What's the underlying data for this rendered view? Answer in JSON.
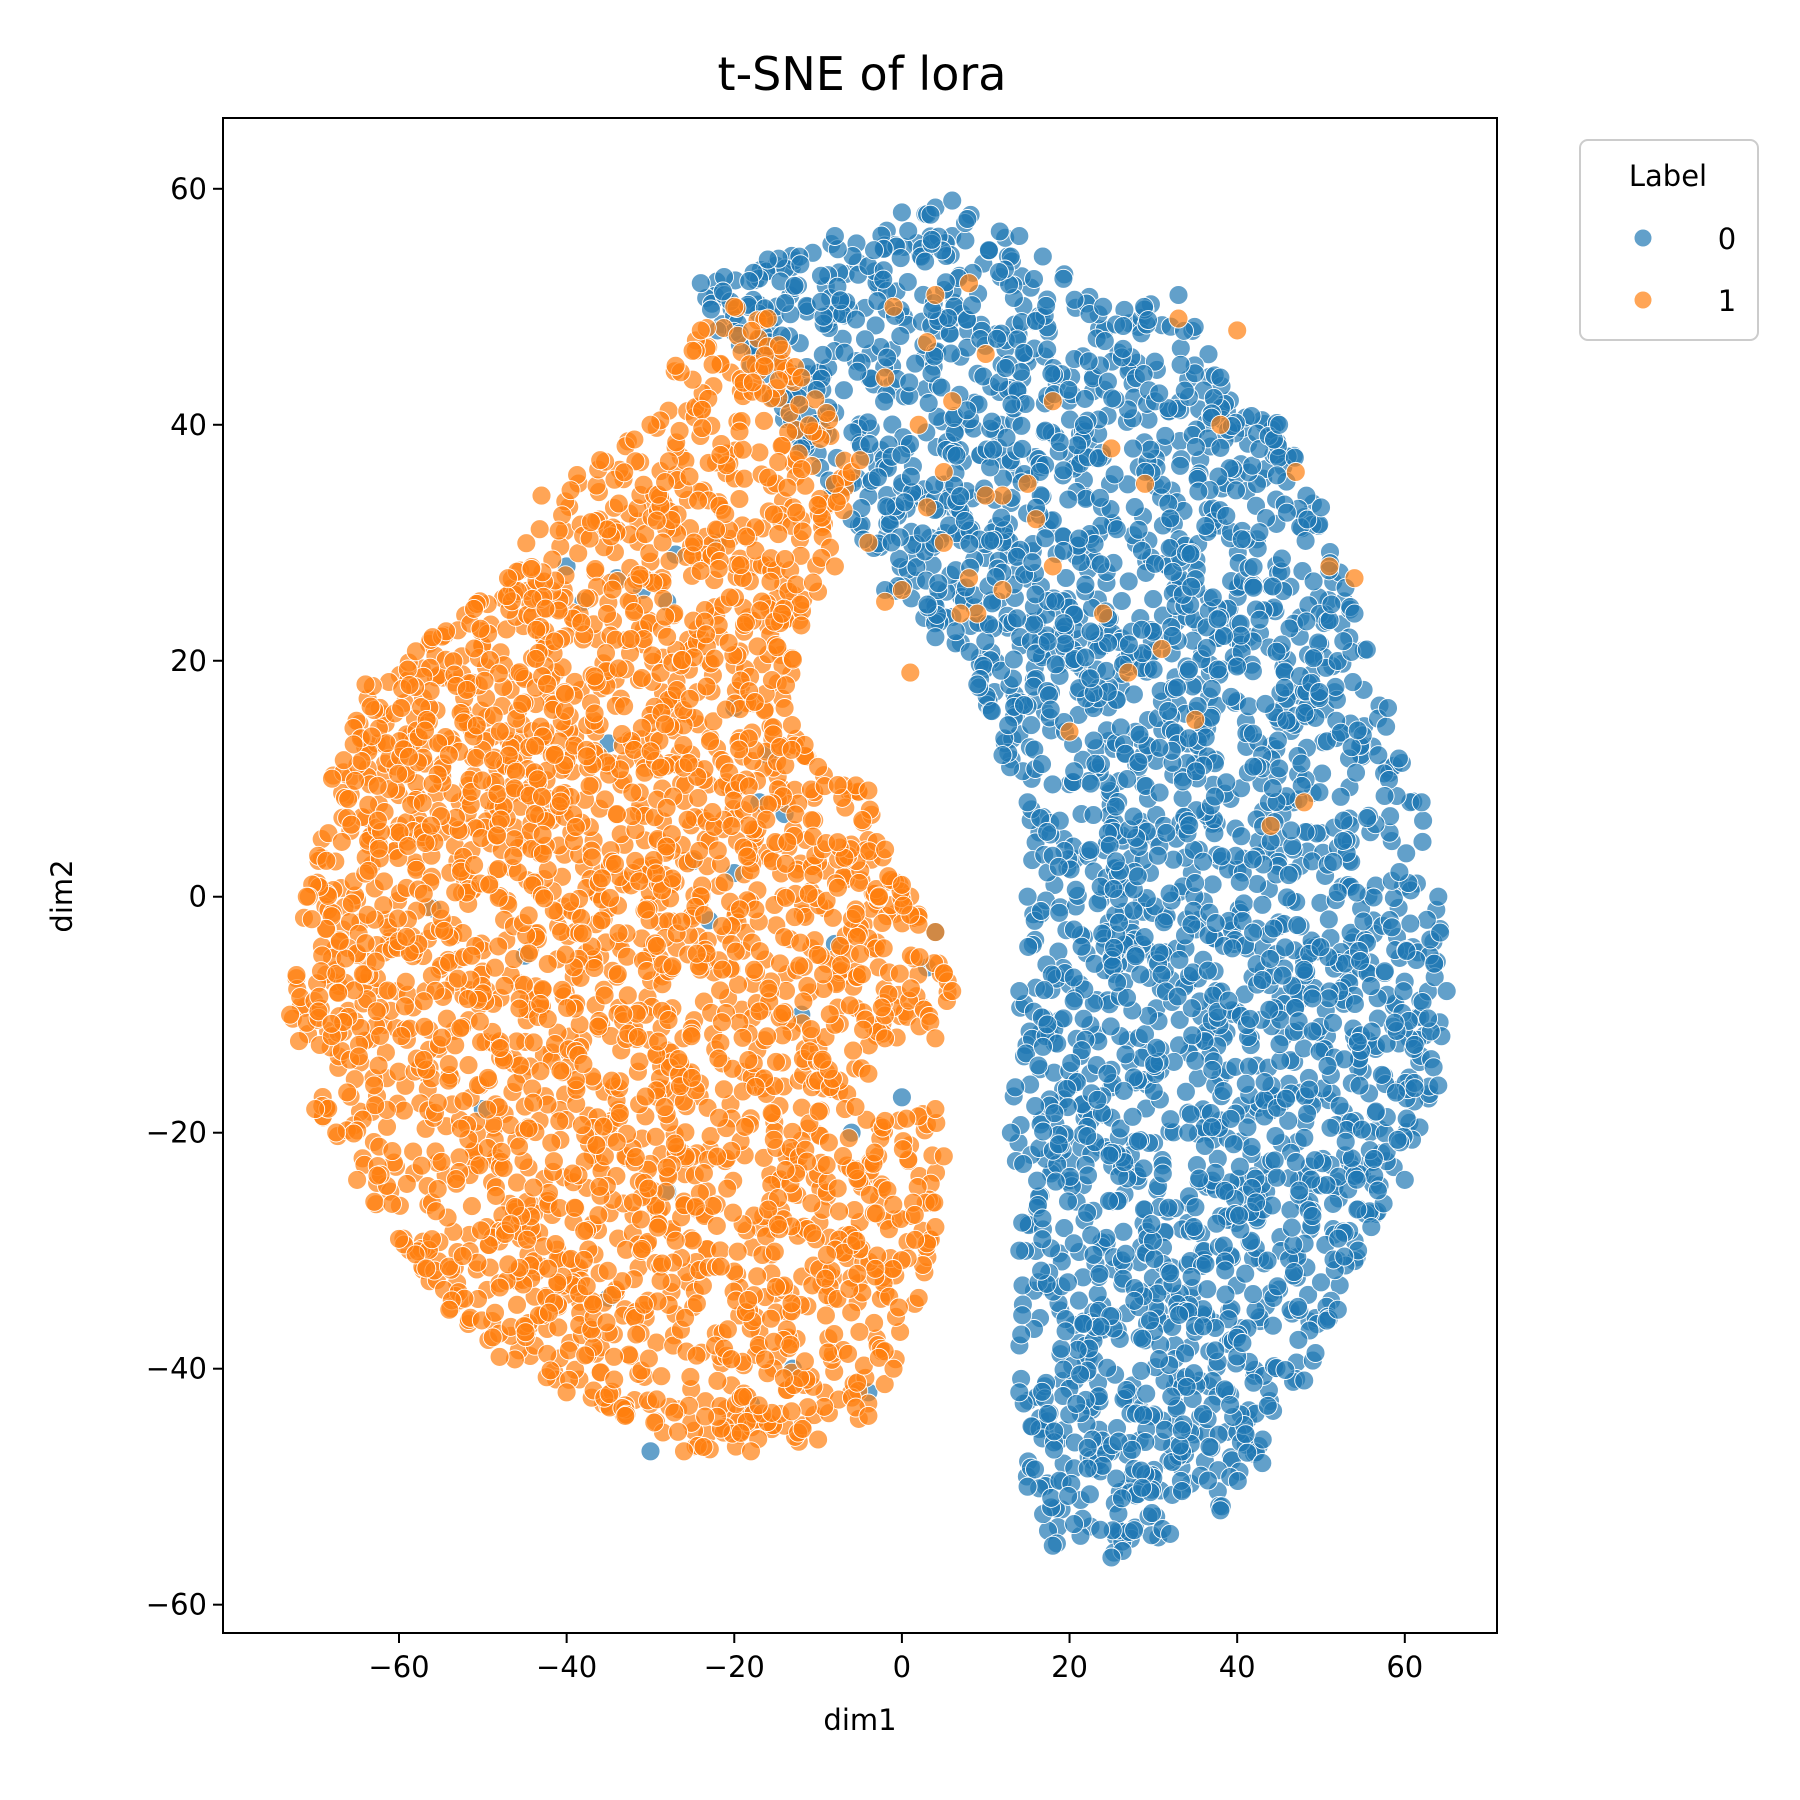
{
  "chart_data": {
    "type": "scatter",
    "title": "t-SNE of lora",
    "xlabel": "dim1",
    "ylabel": "dim2",
    "xlim": [
      -81,
      71
    ],
    "ylim": [
      -62.4,
      66
    ],
    "xticks": [
      -60,
      -40,
      -20,
      0,
      20,
      40,
      60
    ],
    "yticks": [
      -60,
      -40,
      -20,
      0,
      20,
      40,
      60
    ],
    "xtick_labels": [
      "−60",
      "−40",
      "−20",
      "0",
      "20",
      "40",
      "60"
    ],
    "ytick_labels": [
      "−60",
      "−40",
      "−20",
      "0",
      "20",
      "40",
      "60"
    ],
    "grid": false,
    "legend": {
      "title": "Label",
      "placement": "outside-top-right",
      "entries": [
        "0",
        "1"
      ]
    },
    "series": [
      {
        "name": "0",
        "color": "#1f77b4",
        "alpha": 0.7,
        "outline": [
          [
            6,
            59
          ],
          [
            14,
            56
          ],
          [
            24,
            50
          ],
          [
            33,
            51
          ],
          [
            38,
            44
          ],
          [
            45,
            40
          ],
          [
            50,
            33
          ],
          [
            54,
            24
          ],
          [
            58,
            16
          ],
          [
            62,
            8
          ],
          [
            64,
            0
          ],
          [
            65,
            -8
          ],
          [
            64,
            -16
          ],
          [
            60,
            -24
          ],
          [
            56,
            -28
          ],
          [
            52,
            -35
          ],
          [
            48,
            -41
          ],
          [
            43,
            -48
          ],
          [
            38,
            -52
          ],
          [
            32,
            -54
          ],
          [
            25,
            -56
          ],
          [
            18,
            -55
          ],
          [
            15,
            -50
          ],
          [
            14,
            -42
          ],
          [
            14,
            -30
          ],
          [
            13,
            -20
          ],
          [
            14,
            -8
          ],
          [
            15,
            0
          ],
          [
            15,
            8
          ],
          [
            12,
            12
          ],
          [
            9,
            18
          ],
          [
            4,
            22
          ],
          [
            -2,
            26
          ],
          [
            -6,
            32
          ],
          [
            -12,
            38
          ],
          [
            -18,
            45
          ],
          [
            -22,
            48
          ],
          [
            -24,
            52
          ],
          [
            -16,
            54
          ],
          [
            -8,
            56
          ],
          [
            0,
            58
          ]
        ],
        "extra_points": [
          [
            -40,
            28
          ],
          [
            -38,
            25
          ],
          [
            -34,
            27
          ],
          [
            -35,
            13
          ],
          [
            -31,
            26
          ],
          [
            -28,
            25
          ],
          [
            -27,
            29
          ],
          [
            -22,
            30
          ],
          [
            -20,
            16
          ],
          [
            -16,
            12
          ],
          [
            -17,
            8
          ],
          [
            -56,
            -1
          ],
          [
            -14,
            7
          ],
          [
            -23,
            -2
          ],
          [
            -30,
            -47
          ],
          [
            -35,
            -34
          ],
          [
            -25,
            3
          ],
          [
            3,
            -6
          ],
          [
            4,
            -3
          ],
          [
            -20,
            2
          ],
          [
            -8,
            -4
          ],
          [
            -12,
            -10
          ],
          [
            -6,
            -20
          ],
          [
            -45,
            -5
          ],
          [
            -50,
            -18
          ],
          [
            -28,
            -25
          ],
          [
            -13,
            -40
          ],
          [
            -18,
            -43
          ],
          [
            -4,
            -42
          ],
          [
            0,
            -17
          ]
        ],
        "count_estimate": 5200
      },
      {
        "name": "1",
        "color": "#ff7f0e",
        "alpha": 0.7,
        "outline": [
          [
            -20,
            50
          ],
          [
            -16,
            49
          ],
          [
            -12,
            44
          ],
          [
            -9,
            41
          ],
          [
            -6,
            36
          ],
          [
            -8,
            28
          ],
          [
            -12,
            23
          ],
          [
            -14,
            16
          ],
          [
            -10,
            11
          ],
          [
            -4,
            9
          ],
          [
            -2,
            4
          ],
          [
            0,
            1
          ],
          [
            4,
            -3
          ],
          [
            6,
            -8
          ],
          [
            4,
            -12
          ],
          [
            -2,
            -12
          ],
          [
            -4,
            -15
          ],
          [
            -2,
            -19
          ],
          [
            4,
            -18
          ],
          [
            5,
            -22
          ],
          [
            4,
            -28
          ],
          [
            2,
            -34
          ],
          [
            -1,
            -40
          ],
          [
            -4,
            -44
          ],
          [
            -10,
            -46
          ],
          [
            -18,
            -47
          ],
          [
            -26,
            -47
          ],
          [
            -33,
            -44
          ],
          [
            -40,
            -42
          ],
          [
            -48,
            -39
          ],
          [
            -54,
            -35
          ],
          [
            -60,
            -29
          ],
          [
            -65,
            -24
          ],
          [
            -70,
            -18
          ],
          [
            -73,
            -10
          ],
          [
            -71,
            0
          ],
          [
            -68,
            10
          ],
          [
            -64,
            18
          ],
          [
            -56,
            22
          ],
          [
            -47,
            27
          ],
          [
            -43,
            34
          ],
          [
            -36,
            37
          ],
          [
            -30,
            40
          ],
          [
            -27,
            45
          ],
          [
            -24,
            48
          ]
        ],
        "extra_points": [
          [
            -2,
            25
          ],
          [
            -4,
            30
          ],
          [
            0,
            26
          ],
          [
            1,
            19
          ],
          [
            3,
            33
          ],
          [
            2,
            40
          ],
          [
            3,
            47
          ],
          [
            8,
            52
          ],
          [
            10,
            46
          ],
          [
            6,
            42
          ],
          [
            5,
            30
          ],
          [
            8,
            27
          ],
          [
            12,
            26
          ],
          [
            9,
            24
          ],
          [
            12,
            34
          ],
          [
            15,
            35
          ],
          [
            18,
            42
          ],
          [
            24,
            24
          ],
          [
            27,
            19
          ],
          [
            31,
            21
          ],
          [
            33,
            49
          ],
          [
            47,
            36
          ],
          [
            51,
            28
          ],
          [
            54,
            27
          ],
          [
            18,
            28
          ],
          [
            48,
            8
          ],
          [
            44,
            6
          ],
          [
            20,
            14
          ],
          [
            -8,
            35
          ],
          [
            -5,
            37
          ],
          [
            -2,
            44
          ],
          [
            -1,
            50
          ],
          [
            4,
            51
          ],
          [
            10,
            34
          ],
          [
            5,
            36
          ],
          [
            7,
            24
          ],
          [
            16,
            32
          ],
          [
            25,
            38
          ],
          [
            29,
            35
          ],
          [
            38,
            40
          ],
          [
            35,
            15
          ],
          [
            40,
            48
          ]
        ],
        "count_estimate": 5200
      }
    ]
  }
}
